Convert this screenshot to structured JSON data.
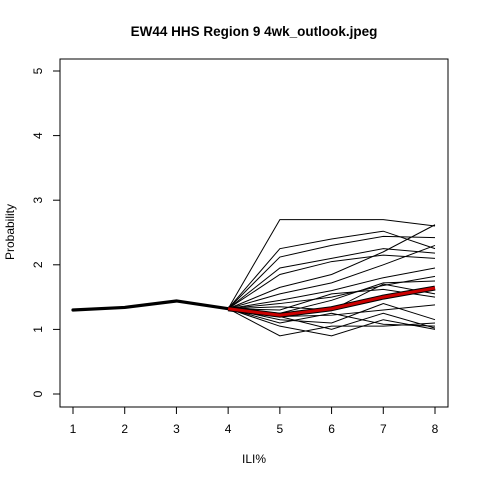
{
  "chart_data": {
    "type": "line",
    "title": "EW44 HHS Region 9 4wk_outlook.jpeg",
    "xlabel": "ILI%",
    "ylabel": "Probability",
    "xlim": [
      1,
      8
    ],
    "ylim": [
      0,
      5
    ],
    "x_ticks": [
      "1",
      "2",
      "3",
      "4",
      "5",
      "6",
      "7",
      "8"
    ],
    "y_ticks": [
      "0",
      "1",
      "2",
      "3",
      "4",
      "5"
    ],
    "grid": false,
    "history": {
      "x": [
        1,
        2,
        3,
        4
      ],
      "values": [
        1.3,
        1.34,
        1.44,
        1.32
      ],
      "color": "#000000"
    },
    "ensemble": {
      "x": [
        4,
        5,
        6,
        7,
        8
      ],
      "color": "#000000",
      "series": [
        {
          "values": [
            1.32,
            2.7,
            2.7,
            2.7,
            2.6
          ]
        },
        {
          "values": [
            1.32,
            2.25,
            2.4,
            2.52,
            2.25
          ]
        },
        {
          "values": [
            1.32,
            2.12,
            2.3,
            2.44,
            2.42
          ]
        },
        {
          "values": [
            1.32,
            1.95,
            2.1,
            2.25,
            2.18
          ]
        },
        {
          "values": [
            1.32,
            1.85,
            2.05,
            2.15,
            2.1
          ]
        },
        {
          "values": [
            1.32,
            1.65,
            1.85,
            2.2,
            2.62
          ]
        },
        {
          "values": [
            1.32,
            1.55,
            1.72,
            2.0,
            2.3
          ]
        },
        {
          "values": [
            1.32,
            1.45,
            1.6,
            1.8,
            1.95
          ]
        },
        {
          "values": [
            1.32,
            1.4,
            1.5,
            1.68,
            1.82
          ]
        },
        {
          "values": [
            1.32,
            1.35,
            1.3,
            1.7,
            1.55
          ]
        },
        {
          "values": [
            1.32,
            1.25,
            1.45,
            1.72,
            1.75
          ]
        },
        {
          "values": [
            1.32,
            1.3,
            1.55,
            1.62,
            1.5
          ]
        },
        {
          "values": [
            1.32,
            1.2,
            1.22,
            1.3,
            1.38
          ]
        },
        {
          "values": [
            1.32,
            1.15,
            1.1,
            1.4,
            1.15
          ]
        },
        {
          "values": [
            1.32,
            1.1,
            1.25,
            1.08,
            1.05
          ]
        },
        {
          "values": [
            1.32,
            1.05,
            0.9,
            1.15,
            1.0
          ]
        },
        {
          "values": [
            1.32,
            0.9,
            1.05,
            1.05,
            1.1
          ]
        },
        {
          "values": [
            1.32,
            1.2,
            1.0,
            1.25,
            1.02
          ]
        }
      ]
    },
    "median": {
      "x": [
        4,
        5,
        6,
        7,
        8
      ],
      "values": [
        1.32,
        1.22,
        1.32,
        1.5,
        1.64
      ],
      "color": "#cc0000"
    }
  }
}
